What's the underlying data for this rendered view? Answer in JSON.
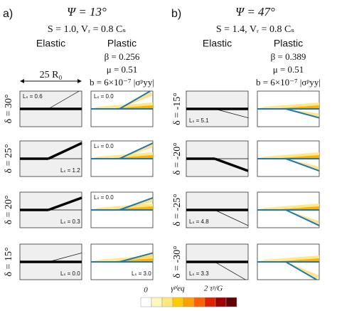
{
  "panels": [
    {
      "label": "a)",
      "psi": "Ψ = 13°",
      "params": "S = 1.0, Vᵣ = 0.8 Cₛ",
      "columns": [
        "Elastic",
        "Plastic"
      ],
      "plastic_params": [
        "β = 0.256",
        "μ = 0.51",
        "b = 6×10⁻⁷ |σᵖyy|"
      ],
      "scale": "25 R₀",
      "rows": [
        {
          "delta": {
            "value": 30,
            "label": "δ = 30°"
          },
          "elastic_ls": "Lₛ = 0.6",
          "plastic_ls": "Lₛ = 0.0"
        },
        {
          "delta": {
            "value": 25,
            "label": "δ = 25°"
          },
          "elastic_ls": "Lₛ = 1.2",
          "plastic_ls": "Lₛ = 0.0"
        },
        {
          "delta": {
            "value": 20,
            "label": "δ = 20°"
          },
          "elastic_ls": "Lₛ = 0.3",
          "plastic_ls": "Lₛ = 0.0"
        },
        {
          "delta": {
            "value": 15,
            "label": "δ = 15°"
          },
          "elastic_ls": "Lₛ = 0.0",
          "plastic_ls": "Lₛ = 3.0"
        }
      ]
    },
    {
      "label": "b)",
      "psi": "Ψ = 47°",
      "params": "S = 1.4, Vᵣ = 0.8 Cₛ",
      "columns": [
        "Elastic",
        "Plastic"
      ],
      "plastic_params": [
        "β = 0.389",
        "μ = 0.51",
        "b = 6×10⁻⁷ |σᵖyy|"
      ],
      "rows": [
        {
          "delta": {
            "value": -15,
            "label": "δ = -15°"
          },
          "elastic_ls": "Lₛ = 5.1"
        },
        {
          "delta": {
            "value": -20,
            "label": "δ = -20°"
          }
        },
        {
          "delta": {
            "value": -25,
            "label": "δ = -25°"
          },
          "elastic_ls": "Lₛ = 4.8"
        },
        {
          "delta": {
            "value": -30,
            "label": "δ = -30°"
          },
          "elastic_ls": "Lₛ = 3.3"
        }
      ]
    }
  ],
  "colorbar": {
    "min": "0",
    "labels": [
      "γᵖˡeq",
      "2 τᵖ/G"
    ]
  }
}
